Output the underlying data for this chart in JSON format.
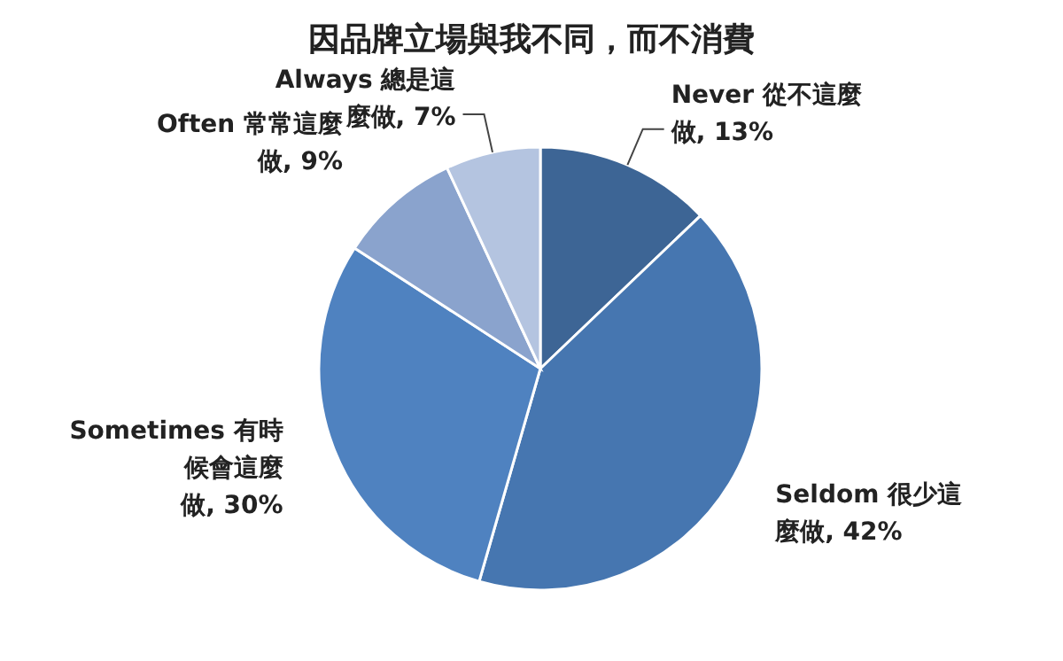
{
  "chart_data": {
    "type": "pie",
    "title": "因品牌立場與我不同，而不消費",
    "categories": [
      "Never 從不這麼做",
      "Seldom 很少這麼做",
      "Sometimes 有時候會這麼做",
      "Often 常常這麼做",
      "Always 總是這麼做"
    ],
    "values": [
      13,
      42,
      30,
      9,
      7
    ],
    "value_labels": [
      "13%",
      "42%",
      "30%",
      "9%",
      "7%"
    ],
    "colors": [
      "#3d6595",
      "#4676b0",
      "#4f82c0",
      "#8aa3cd",
      "#b4c4e0"
    ]
  }
}
